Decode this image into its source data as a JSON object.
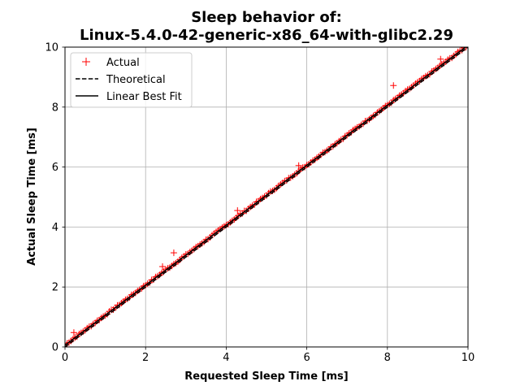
{
  "chart_data": {
    "type": "scatter",
    "title_line1": "Sleep behavior of:",
    "title_line2": "Linux-5.4.0-42-generic-x86_64-with-glibc2.29",
    "xlabel": "Requested Sleep Time [ms]",
    "ylabel": "Actual Sleep Time [ms]",
    "xlim": [
      0,
      10
    ],
    "ylim": [
      0,
      10
    ],
    "xticks": [
      "0",
      "2",
      "4",
      "6",
      "8",
      "10"
    ],
    "yticks": [
      "0",
      "2",
      "4",
      "6",
      "8",
      "10"
    ],
    "grid": true,
    "legend_position": "upper-left",
    "series": [
      {
        "name": "Actual",
        "style": "marker-plus",
        "color": "#ff0000",
        "points": "see-script"
      },
      {
        "name": "Theoretical",
        "style": "dashed-line",
        "color": "#000000",
        "x": [
          0,
          10
        ],
        "y": [
          0,
          10
        ]
      },
      {
        "name": "Linear Best Fit",
        "style": "solid-line",
        "color": "#000000",
        "x": [
          0,
          10
        ],
        "y": [
          0.06,
          10.06
        ]
      }
    ],
    "outliers": [
      {
        "x": 0.22,
        "y": 0.48
      },
      {
        "x": 2.42,
        "y": 2.68
      },
      {
        "x": 2.7,
        "y": 3.14
      },
      {
        "x": 4.28,
        "y": 4.55
      },
      {
        "x": 5.8,
        "y": 6.05
      },
      {
        "x": 8.15,
        "y": 8.72
      },
      {
        "x": 9.32,
        "y": 9.6
      }
    ]
  }
}
